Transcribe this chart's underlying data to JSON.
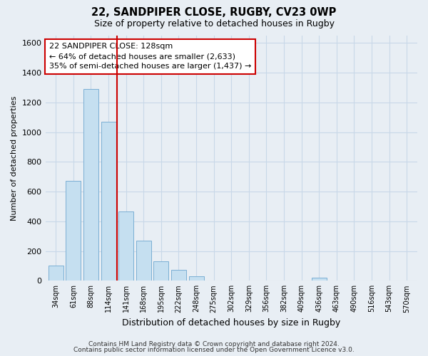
{
  "title_line1": "22, SANDPIPER CLOSE, RUGBY, CV23 0WP",
  "title_line2": "Size of property relative to detached houses in Rugby",
  "xlabel": "Distribution of detached houses by size in Rugby",
  "ylabel": "Number of detached properties",
  "categories": [
    "34sqm",
    "61sqm",
    "88sqm",
    "114sqm",
    "141sqm",
    "168sqm",
    "195sqm",
    "222sqm",
    "248sqm",
    "275sqm",
    "302sqm",
    "329sqm",
    "356sqm",
    "382sqm",
    "409sqm",
    "436sqm",
    "463sqm",
    "490sqm",
    "516sqm",
    "543sqm",
    "570sqm"
  ],
  "values": [
    100,
    670,
    1290,
    1070,
    465,
    268,
    130,
    75,
    30,
    0,
    0,
    0,
    0,
    0,
    0,
    20,
    0,
    0,
    0,
    0,
    0
  ],
  "bar_color": "#c5dff0",
  "bar_edge_color": "#7bafd4",
  "vline_x": 3.5,
  "vline_color": "#cc0000",
  "annotation_line1": "22 SANDPIPER CLOSE: 128sqm",
  "annotation_line2": "← 64% of detached houses are smaller (2,633)",
  "annotation_line3": "35% of semi-detached houses are larger (1,437) →",
  "annotation_box_color": "#ffffff",
  "annotation_box_edge_color": "#cc0000",
  "ylim": [
    0,
    1650
  ],
  "yticks": [
    0,
    200,
    400,
    600,
    800,
    1000,
    1200,
    1400,
    1600
  ],
  "footer_line1": "Contains HM Land Registry data © Crown copyright and database right 2024.",
  "footer_line2": "Contains public sector information licensed under the Open Government Licence v3.0.",
  "background_color": "#e8eef4",
  "grid_color": "#c8d8e8"
}
